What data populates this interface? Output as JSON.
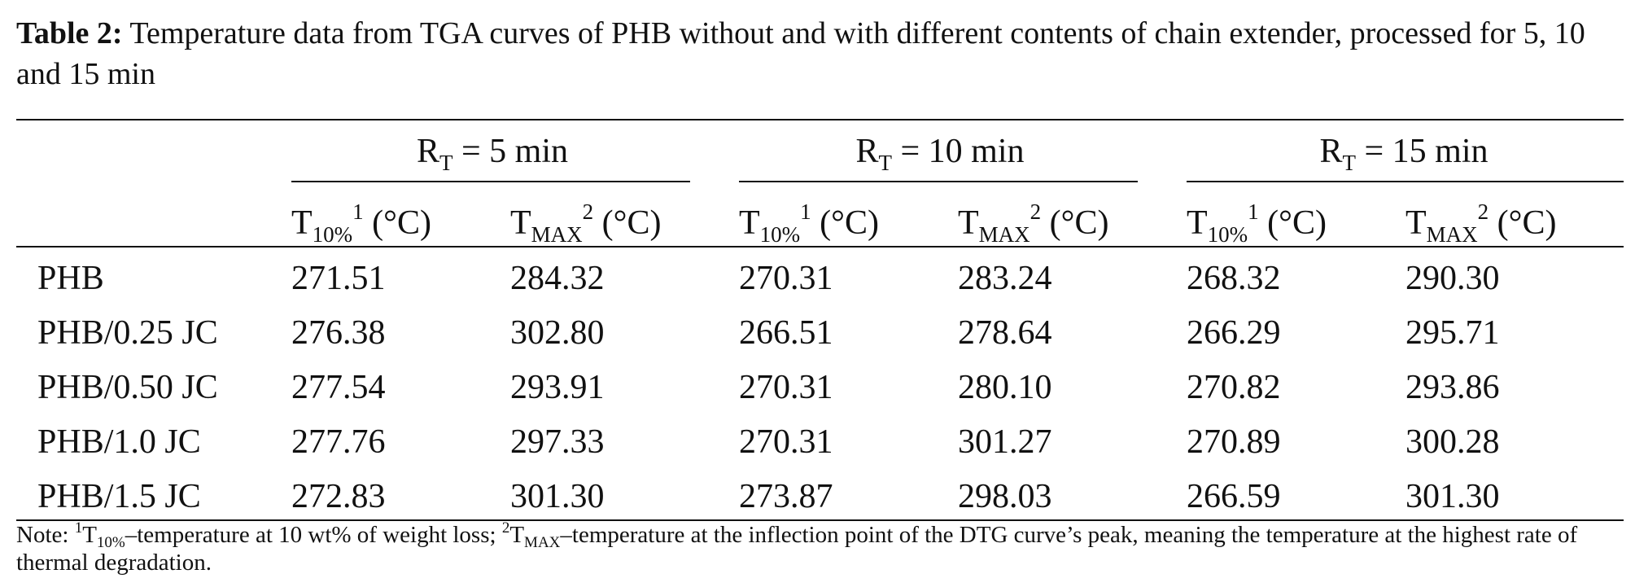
{
  "caption": {
    "label": "Table 2:",
    "text": "Temperature data from TGA curves of PHB without and with different contents of chain extender, processed for 5, 10 and 15 min"
  },
  "groups": [
    {
      "r": "R",
      "r_sub": "T",
      "value": "= 5 min"
    },
    {
      "r": "R",
      "r_sub": "T",
      "value": "= 10 min"
    },
    {
      "r": "R",
      "r_sub": "T",
      "value": "= 15 min"
    }
  ],
  "col_headers": {
    "t10": {
      "base": "T",
      "sub": "10%",
      "sup": "1",
      "unit": "(°C)"
    },
    "tmax": {
      "base": "T",
      "sub": "MAX",
      "sup": "2",
      "unit": "(°C)"
    }
  },
  "rows": [
    {
      "sample": "PHB",
      "values": [
        "271.51",
        "284.32",
        "270.31",
        "283.24",
        "268.32",
        "290.30"
      ]
    },
    {
      "sample": "PHB/0.25 JC",
      "values": [
        "276.38",
        "302.80",
        "266.51",
        "278.64",
        "266.29",
        "295.71"
      ]
    },
    {
      "sample": "PHB/0.50 JC",
      "values": [
        "277.54",
        "293.91",
        "270.31",
        "280.10",
        "270.82",
        "293.86"
      ]
    },
    {
      "sample": "PHB/1.0 JC",
      "values": [
        "277.76",
        "297.33",
        "270.31",
        "301.27",
        "270.89",
        "300.28"
      ]
    },
    {
      "sample": "PHB/1.5 JC",
      "values": [
        "272.83",
        "301.30",
        "273.87",
        "298.03",
        "266.59",
        "301.30"
      ]
    }
  ],
  "note": {
    "prefix": "Note: ",
    "sup1": "1",
    "t10_base": "T",
    "t10_sub": "10%",
    "part1": "–temperature at 10 wt% of weight loss; ",
    "sup2": "2",
    "tmax_base": "T",
    "tmax_sub": "MAX",
    "part2": "–temperature at the inflection point of the DTG curve’s peak, meaning the temperature at the highest rate of thermal degradation."
  }
}
